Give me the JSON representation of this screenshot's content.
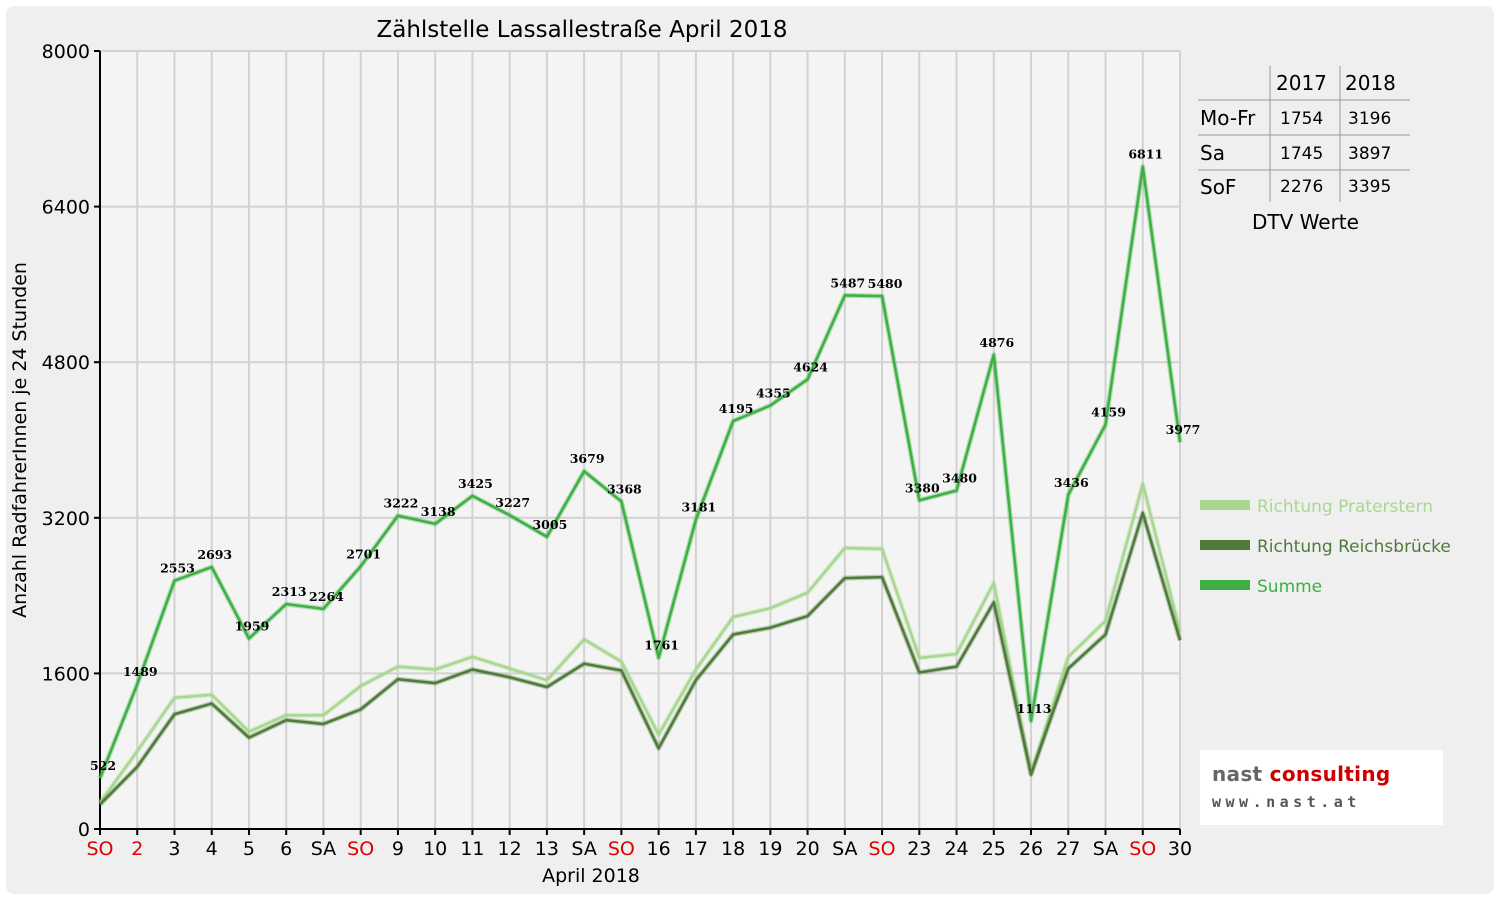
{
  "chart_data": {
    "type": "line",
    "title": "Zählstelle Lassallestraße April 2018",
    "xlabel": "April 2018",
    "ylabel": "Anzahl RadfahrerInnen je 24 Stunden",
    "ylim": [
      0,
      8000
    ],
    "yticks": [
      "0",
      "1600",
      "3200",
      "4800",
      "6400",
      "8000"
    ],
    "grid": true,
    "legend_position": "right",
    "categories": [
      "SO",
      "2",
      "3",
      "4",
      "5",
      "6",
      "SA",
      "SO",
      "9",
      "10",
      "11",
      "12",
      "13",
      "SA",
      "SO",
      "16",
      "17",
      "18",
      "19",
      "20",
      "SA",
      "SO",
      "23",
      "24",
      "25",
      "26",
      "27",
      "SA",
      "SO",
      "30"
    ],
    "category_colors": [
      "#e00000",
      "#e00000",
      "#000000",
      "#000000",
      "#000000",
      "#000000",
      "#000000",
      "#e00000",
      "#000000",
      "#000000",
      "#000000",
      "#000000",
      "#000000",
      "#000000",
      "#e00000",
      "#000000",
      "#000000",
      "#000000",
      "#000000",
      "#000000",
      "#000000",
      "#e00000",
      "#000000",
      "#000000",
      "#000000",
      "#000000",
      "#000000",
      "#000000",
      "#e00000",
      "#000000"
    ],
    "series": [
      {
        "name": "Richtung Praterstern",
        "color": "#a8d890",
        "values": [
          270,
          800,
          1350,
          1380,
          1000,
          1170,
          1170,
          1470,
          1670,
          1640,
          1770,
          1650,
          1530,
          1950,
          1720,
          970,
          1640,
          2180,
          2270,
          2430,
          2890,
          2880,
          1760,
          1800,
          2530,
          570,
          1770,
          2140,
          3550,
          2030
        ]
      },
      {
        "name": "Richtung Reichsbrücke",
        "color": "#4e7a3a",
        "values": [
          252,
          640,
          1180,
          1290,
          940,
          1120,
          1080,
          1230,
          1540,
          1500,
          1640,
          1560,
          1460,
          1700,
          1630,
          830,
          1530,
          2000,
          2070,
          2190,
          2580,
          2590,
          1610,
          1670,
          2330,
          560,
          1650,
          2000,
          3250,
          1940
        ]
      },
      {
        "name": "Summe",
        "color": "#3cb043",
        "values": [
          522,
          1489,
          2553,
          2693,
          1959,
          2313,
          2264,
          2701,
          3222,
          3138,
          3425,
          3227,
          3005,
          3679,
          3368,
          1761,
          3181,
          4195,
          4355,
          4624,
          5487,
          5480,
          3380,
          3480,
          4876,
          1113,
          3436,
          4159,
          6811,
          3977
        ]
      }
    ],
    "data_labels": [
      "522",
      "1489",
      "2553",
      "2693",
      "1959",
      "2313",
      "2264",
      "2701",
      "3222",
      "3138",
      "3425",
      "3227",
      "3005",
      "3679",
      "3368",
      "1761",
      "3181",
      "4195",
      "4355",
      "4624",
      "5487",
      "5480",
      "3380",
      "3480",
      "4876",
      "1113",
      "3436",
      "4159",
      "6811",
      "3977"
    ]
  },
  "dtv_table": {
    "headers": [
      "2017",
      "2018"
    ],
    "rows": [
      {
        "label": "Mo-Fr",
        "v2017": "1754",
        "v2018": "3196"
      },
      {
        "label": "Sa",
        "v2017": "1745",
        "v2018": "3897"
      },
      {
        "label": "SoF",
        "v2017": "2276",
        "v2018": "3395"
      }
    ],
    "caption": "DTV Werte"
  },
  "logo": {
    "name_gray": "nast",
    "name_red": "consulting",
    "url": "www.nast.at"
  }
}
